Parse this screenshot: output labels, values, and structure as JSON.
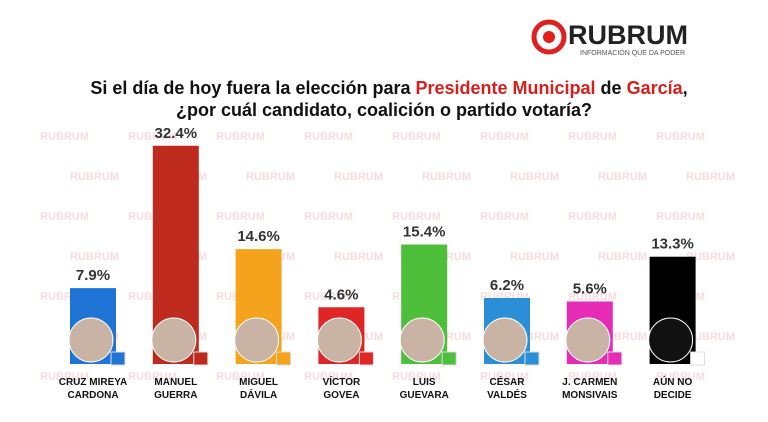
{
  "chart_data": {
    "type": "bar",
    "brand": "RUBRUM",
    "tagline": "INFORMACIÓN QUE DA PODER",
    "watermark": "RUBRUM",
    "title_parts": [
      "Si el día de hoy fuera la elección para ",
      "Presidente Municipal",
      " de ",
      "García",
      ","
    ],
    "subtitle": "¿por cuál candidato, coalición o partido votaría?",
    "categories": [
      [
        "CRUZ MIREYA",
        "CARDONA"
      ],
      [
        "MANUEL",
        "GUERRA"
      ],
      [
        "MIGUEL",
        "DÁVILA"
      ],
      [
        "VÍCTOR",
        "GOVEA"
      ],
      [
        "LUIS",
        "GUEVARA"
      ],
      [
        "CÉSAR",
        "VALDÉS"
      ],
      [
        "J. CARMEN",
        "MONSIVAIS"
      ],
      [
        "AÚN NO",
        "DECIDE"
      ]
    ],
    "values": [
      7.9,
      32.4,
      14.6,
      4.6,
      15.4,
      6.2,
      5.6,
      13.3
    ],
    "value_labels": [
      "7.9%",
      "32.4%",
      "14.6%",
      "4.6%",
      "15.4%",
      "6.2%",
      "5.6%",
      "13.3%"
    ],
    "colors": [
      "#1f74d6",
      "#bf2a1e",
      "#f5a31c",
      "#e02525",
      "#4dbf3b",
      "#2b8fd8",
      "#e62cb4",
      "#000000"
    ]
  }
}
